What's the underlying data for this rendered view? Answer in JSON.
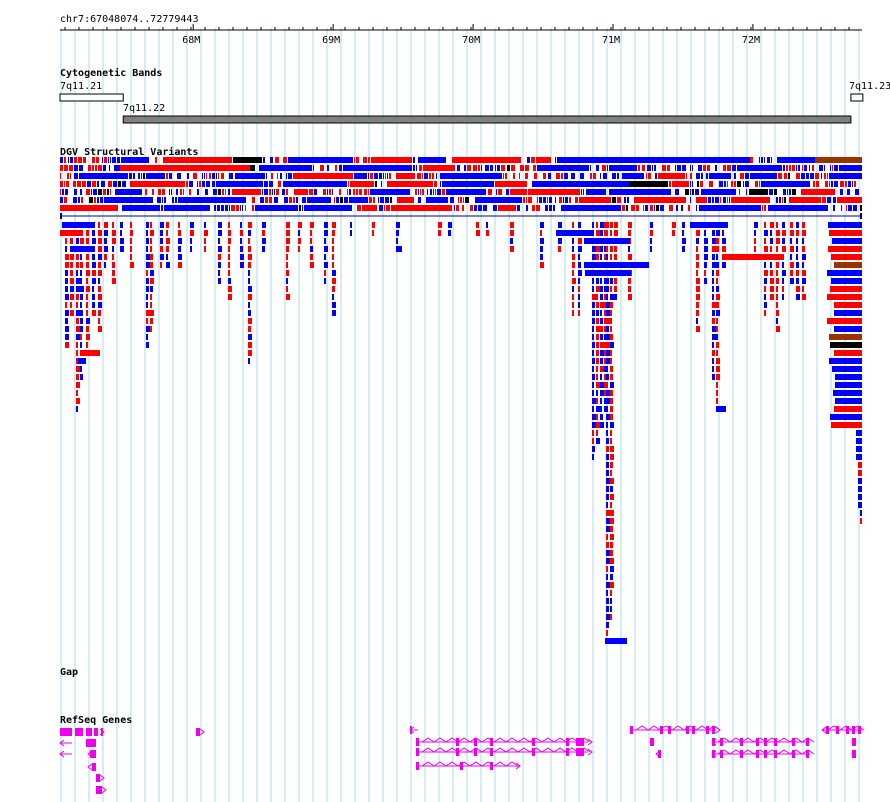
{
  "ruler": {
    "location": "chr7:67048074..72779443",
    "ticks": [
      {
        "label": "68M",
        "pos": 68000000
      },
      {
        "label": "69M",
        "pos": 69000000
      },
      {
        "label": "70M",
        "pos": 70000000
      },
      {
        "label": "71M",
        "pos": 71000000
      },
      {
        "label": "72M",
        "pos": 72000000
      }
    ]
  },
  "tracks": {
    "cytoband": {
      "title": "Cytogenetic Bands",
      "bands": [
        {
          "name": "7q11.21",
          "start": 67048074,
          "end": 67500000,
          "stain": "gneg"
        },
        {
          "name": "7q11.22",
          "start": 67500000,
          "end": 72700000,
          "stain": "gpos"
        },
        {
          "name": "7q11.23",
          "start": 72700000,
          "end": 72779443,
          "stain": "gneg"
        }
      ]
    },
    "dgv": {
      "title": "DGV Structural Variants"
    },
    "gap": {
      "title": "Gap"
    },
    "refseq": {
      "title": "RefSeq Genes"
    }
  },
  "colors": {
    "grid": "#aaddee",
    "gain": "#0000ff",
    "loss": "#ff0000",
    "complex": "#993300",
    "other": "#000000",
    "gene": "#ee00ee",
    "band_gpos": "#808080"
  }
}
